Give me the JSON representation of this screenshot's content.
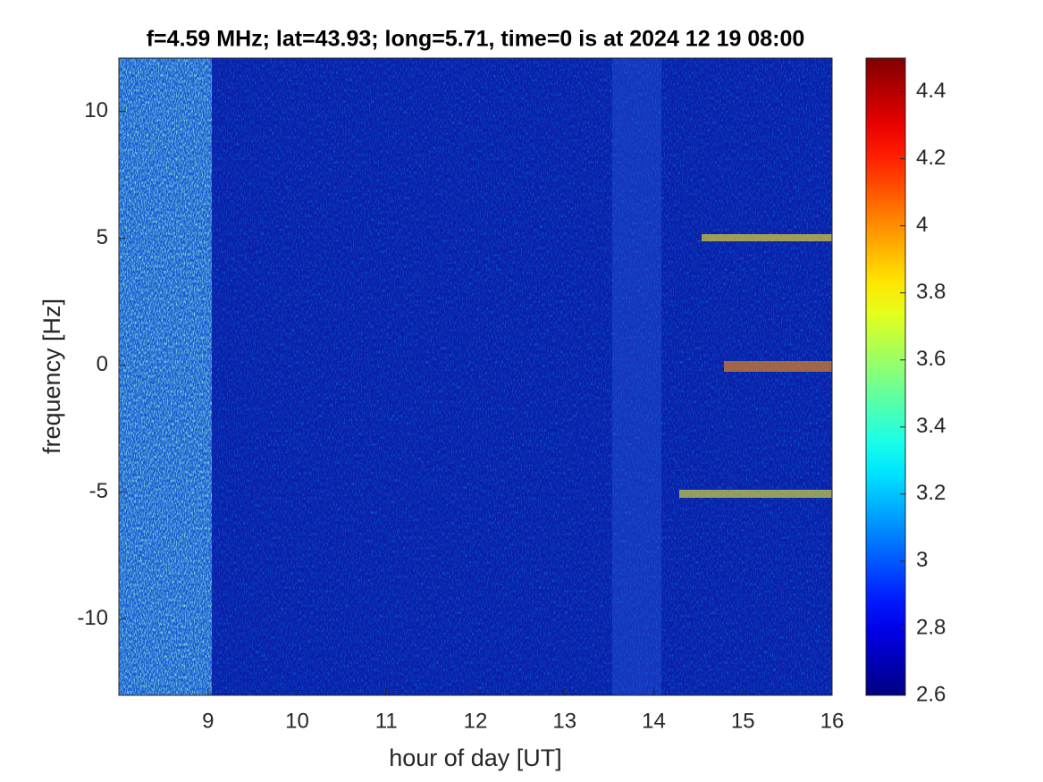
{
  "chart_data": {
    "type": "heatmap",
    "title": "f=4.59 MHz;  lat=43.93; long=5.71, time=0 is at 2024 12 19 08:00",
    "xlabel": "hour of day [UT]",
    "ylabel": "frequency [Hz]",
    "xlim": [
      8,
      16
    ],
    "xticks": [
      9,
      10,
      11,
      12,
      13,
      14,
      15,
      16
    ],
    "ylim": [
      -13,
      12.1
    ],
    "yticks": [
      -10,
      -5,
      0,
      5,
      10
    ],
    "colormap": "jet",
    "clim": [
      2.6,
      4.5
    ],
    "cticks": [
      2.6,
      2.8,
      3,
      3.2,
      3.4,
      3.6,
      3.8,
      4,
      4.2,
      4.4
    ]
  }
}
